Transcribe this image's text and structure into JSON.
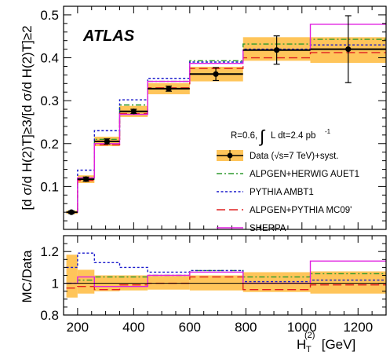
{
  "chart_data": {
    "type": "line",
    "brand_label": "ATLAS",
    "annotation": {
      "params": "R=0.6,",
      "integral_symbol": "∫",
      "luminosity": "L dt=2.4 pb",
      "luminosity_exp": "-1"
    },
    "x_axis": {
      "label_main": "H",
      "label_sub": "T",
      "label_sup": "(2)",
      "label_unit": " [GeV]",
      "range": [
        150,
        1300
      ],
      "ticks": [
        200,
        400,
        600,
        800,
        1000,
        1200
      ]
    },
    "top_panel": {
      "ylabel": "[d σ/d H(2)T]≥3/[d σ/d H(2)T]≥2",
      "ylim": [
        0.0,
        0.52
      ],
      "ticks": [
        0.1,
        0.2,
        0.3,
        0.4,
        0.5
      ],
      "tick_labels": [
        "0.1",
        "0.2",
        "0.3",
        "0.4",
        "0.5"
      ]
    },
    "bottom_panel": {
      "ylabel": "MC/Data",
      "ylim": [
        0.8,
        1.3
      ],
      "ticks": [
        0.8,
        1.0,
        1.2
      ],
      "tick_labels": [
        "0.8",
        "1",
        "1.2"
      ]
    },
    "bins": [
      {
        "lo": 160,
        "hi": 200
      },
      {
        "lo": 200,
        "hi": 260
      },
      {
        "lo": 260,
        "hi": 350
      },
      {
        "lo": 350,
        "hi": 450
      },
      {
        "lo": 450,
        "hi": 600
      },
      {
        "lo": 600,
        "hi": 790
      },
      {
        "lo": 790,
        "hi": 1030
      },
      {
        "lo": 1030,
        "hi": 1300
      }
    ],
    "data": {
      "name": "Data (√s=7 TeV)+syst.",
      "color": "#000000",
      "band_color": "#ffc55a",
      "x": [
        178,
        230,
        305,
        400,
        525,
        693,
        910,
        1165
      ],
      "values": [
        0.04,
        0.117,
        0.205,
        0.275,
        0.328,
        0.362,
        0.418,
        0.42
      ],
      "stat_err": [
        0.003,
        0.005,
        0.006,
        0.005,
        0.006,
        0.015,
        0.033,
        0.078
      ],
      "syst_lo": [
        0.036,
        0.108,
        0.194,
        0.262,
        0.315,
        0.345,
        0.393,
        0.388
      ],
      "syst_hi": [
        0.044,
        0.126,
        0.216,
        0.288,
        0.341,
        0.379,
        0.448,
        0.448
      ],
      "ratio_syst_lo": [
        0.91,
        0.935,
        0.95,
        0.955,
        0.96,
        0.955,
        0.945,
        0.935
      ],
      "ratio_syst_hi": [
        1.18,
        1.085,
        1.05,
        1.05,
        1.045,
        1.05,
        1.07,
        1.075
      ]
    },
    "series": [
      {
        "name": "ALPGEN+HERWIG AUET1",
        "color": "#2e9a2e",
        "dash": "dashdot",
        "values": [
          0.04,
          0.12,
          0.21,
          0.29,
          0.345,
          0.393,
          0.432,
          0.443
        ],
        "ratio": [
          1.0,
          1.02,
          1.04,
          1.04,
          1.05,
          1.08,
          1.04,
          1.06
        ]
      },
      {
        "name": "PYTHIA AMBT1",
        "color": "#1a1acc",
        "dash": "dotted",
        "values": [
          0.04,
          0.138,
          0.23,
          0.302,
          0.352,
          0.39,
          0.42,
          0.43
        ],
        "ratio": [
          1.1,
          1.19,
          1.13,
          1.1,
          1.07,
          1.08,
          1.01,
          1.02
        ]
      },
      {
        "name": "ALPGEN+PYTHIA MC09'",
        "color": "#e02020",
        "dash": "longdash",
        "values": [
          0.04,
          0.114,
          0.197,
          0.27,
          0.33,
          0.375,
          0.4,
          0.412
        ],
        "ratio": [
          0.97,
          0.98,
          0.96,
          0.99,
          1.0,
          1.04,
          0.96,
          0.99
        ]
      },
      {
        "name": "SHERPA",
        "color": "#e020e0",
        "dash": "solid",
        "values": [
          0.04,
          0.12,
          0.2,
          0.268,
          0.345,
          0.387,
          0.418,
          0.478
        ],
        "ratio": [
          1.0,
          1.04,
          0.98,
          0.98,
          1.05,
          1.07,
          1.0,
          1.14
        ]
      }
    ],
    "legend_position": "right, middle of top panel"
  }
}
